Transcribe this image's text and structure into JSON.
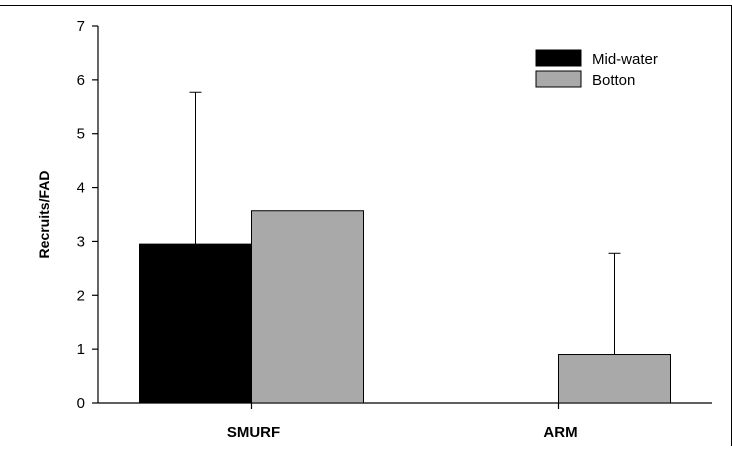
{
  "chart_data": {
    "type": "bar",
    "categories": [
      "SMURF",
      "ARM"
    ],
    "series": [
      {
        "name": "Mid-water",
        "values": [
          2.95,
          0
        ],
        "error_upper": [
          5.77,
          null
        ],
        "color": "#000000"
      },
      {
        "name": "Botton",
        "values": [
          3.57,
          0.9
        ],
        "error_upper": [
          null,
          2.78
        ],
        "color": "#a9a9a9"
      }
    ],
    "xlabel": "",
    "ylabel": "Recruits/FAD",
    "ylim": [
      0,
      7
    ],
    "yticks": [
      "0",
      "1",
      "2",
      "3",
      "4",
      "5",
      "6",
      "7"
    ],
    "grid": false,
    "legend_position": "top-right"
  }
}
